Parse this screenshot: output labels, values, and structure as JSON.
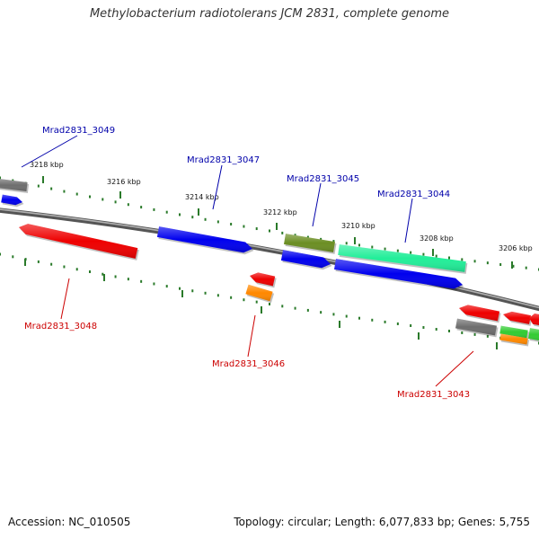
{
  "title": "Methylobacterium radiotolerans JCM 2831, complete genome",
  "footer": {
    "accession": "Accession: NC_010505",
    "summary": "Topology: circular; Length: 6,077,833 bp; Genes: 5,755"
  },
  "colors": {
    "forward_label": "#0000aa",
    "reverse_label": "#cc0000",
    "backbone": "#808080",
    "tick": "#2a7a2a"
  },
  "ticks": {
    "labels": [
      "3218 kbp",
      "3216 kbp",
      "3214 kbp",
      "3212 kbp",
      "3210 kbp",
      "3208 kbp",
      "3206 kbp"
    ]
  },
  "genes": {
    "forward_strand": [
      {
        "id": "fwd-edge-gray",
        "color": "#6e6e6e"
      },
      {
        "id": "fwd-edge-blue",
        "color": "#0000ee"
      },
      {
        "id": "fwd-3047",
        "color": "#0000ee"
      },
      {
        "id": "fwd-3045-olive",
        "color": "#6b8e23"
      },
      {
        "id": "fwd-3045-blue",
        "color": "#0000ee"
      },
      {
        "id": "fwd-3044-spring",
        "color": "#22ee99"
      },
      {
        "id": "fwd-blue-long",
        "color": "#0000ee"
      }
    ],
    "reverse_strand": [
      {
        "id": "rev-3048",
        "color": "#ee0000"
      },
      {
        "id": "rev-3046-red",
        "color": "#ee0000"
      },
      {
        "id": "rev-3046-orange",
        "color": "#ff8800"
      },
      {
        "id": "rev-3043-red",
        "color": "#ee0000"
      },
      {
        "id": "rev-3043-gray",
        "color": "#6e6e6e"
      },
      {
        "id": "rev-red-small",
        "color": "#ee0000"
      },
      {
        "id": "rev-green",
        "color": "#33cc33"
      },
      {
        "id": "rev-orange-small",
        "color": "#ff8800"
      },
      {
        "id": "rev-red-edge",
        "color": "#ee0000"
      },
      {
        "id": "rev-green-edge",
        "color": "#33cc33"
      }
    ]
  },
  "labels": {
    "forward": [
      "Mrad2831_3049",
      "Mrad2831_3047",
      "Mrad2831_3045",
      "Mrad2831_3044"
    ],
    "reverse": [
      "Mrad2831_3048",
      "Mrad2831_3046",
      "Mrad2831_3043"
    ]
  }
}
